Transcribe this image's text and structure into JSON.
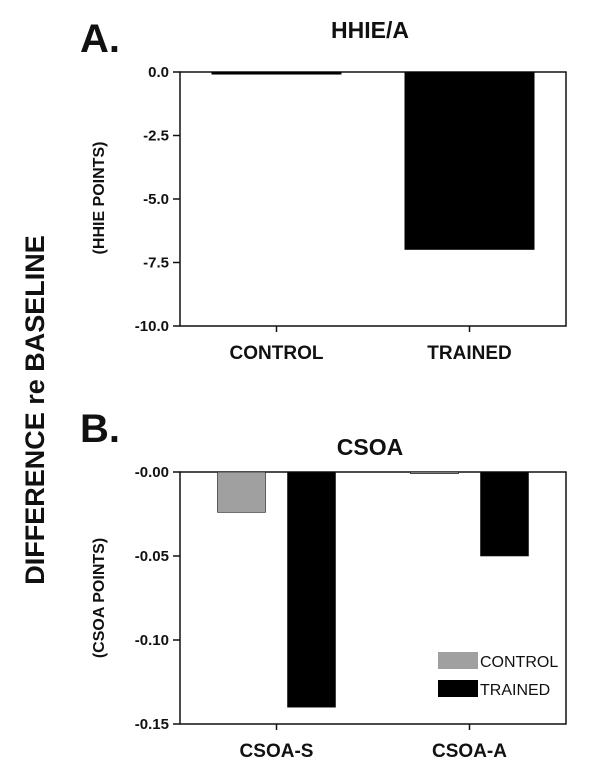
{
  "shared_ylabel": "DIFFERENCE re BASELINE",
  "colors": {
    "control": "#a0a0a0",
    "trained": "#000000",
    "axis": "#111111"
  },
  "chart_data": [
    {
      "type": "bar",
      "panel_label": "A.",
      "title": "HHIE/A",
      "ylabel": "(HHIE POINTS)",
      "xlabel": "",
      "categories": [
        "CONTROL",
        "TRAINED"
      ],
      "values": [
        -0.1,
        -7.0
      ],
      "bar_colors": [
        "#000000",
        "#000000"
      ],
      "ylim": [
        -10.0,
        0.0
      ],
      "yticks": [
        0.0,
        -2.5,
        -5.0,
        -7.5,
        -10.0
      ],
      "ytick_labels": [
        "0.0",
        "-2.5",
        "-5.0",
        "-7.5",
        "-10.0"
      ],
      "grid": false
    },
    {
      "type": "bar",
      "panel_label": "B.",
      "title": "CSOA",
      "ylabel": "(CSOA POINTS)",
      "xlabel": "",
      "categories": [
        "CSOA-S",
        "CSOA-A"
      ],
      "series": [
        {
          "name": "CONTROL",
          "values": [
            -0.024,
            -0.001
          ]
        },
        {
          "name": "TRAINED",
          "values": [
            -0.14,
            -0.05
          ]
        }
      ],
      "ylim": [
        -0.15,
        0.0
      ],
      "yticks": [
        0.0,
        -0.05,
        -0.1,
        -0.15
      ],
      "ytick_labels": [
        "-0.00",
        "-0.05",
        "-0.10",
        "-0.15"
      ],
      "legend": {
        "entries": [
          "CONTROL",
          "TRAINED"
        ],
        "placement": "bottom-right"
      },
      "grid": false
    }
  ]
}
